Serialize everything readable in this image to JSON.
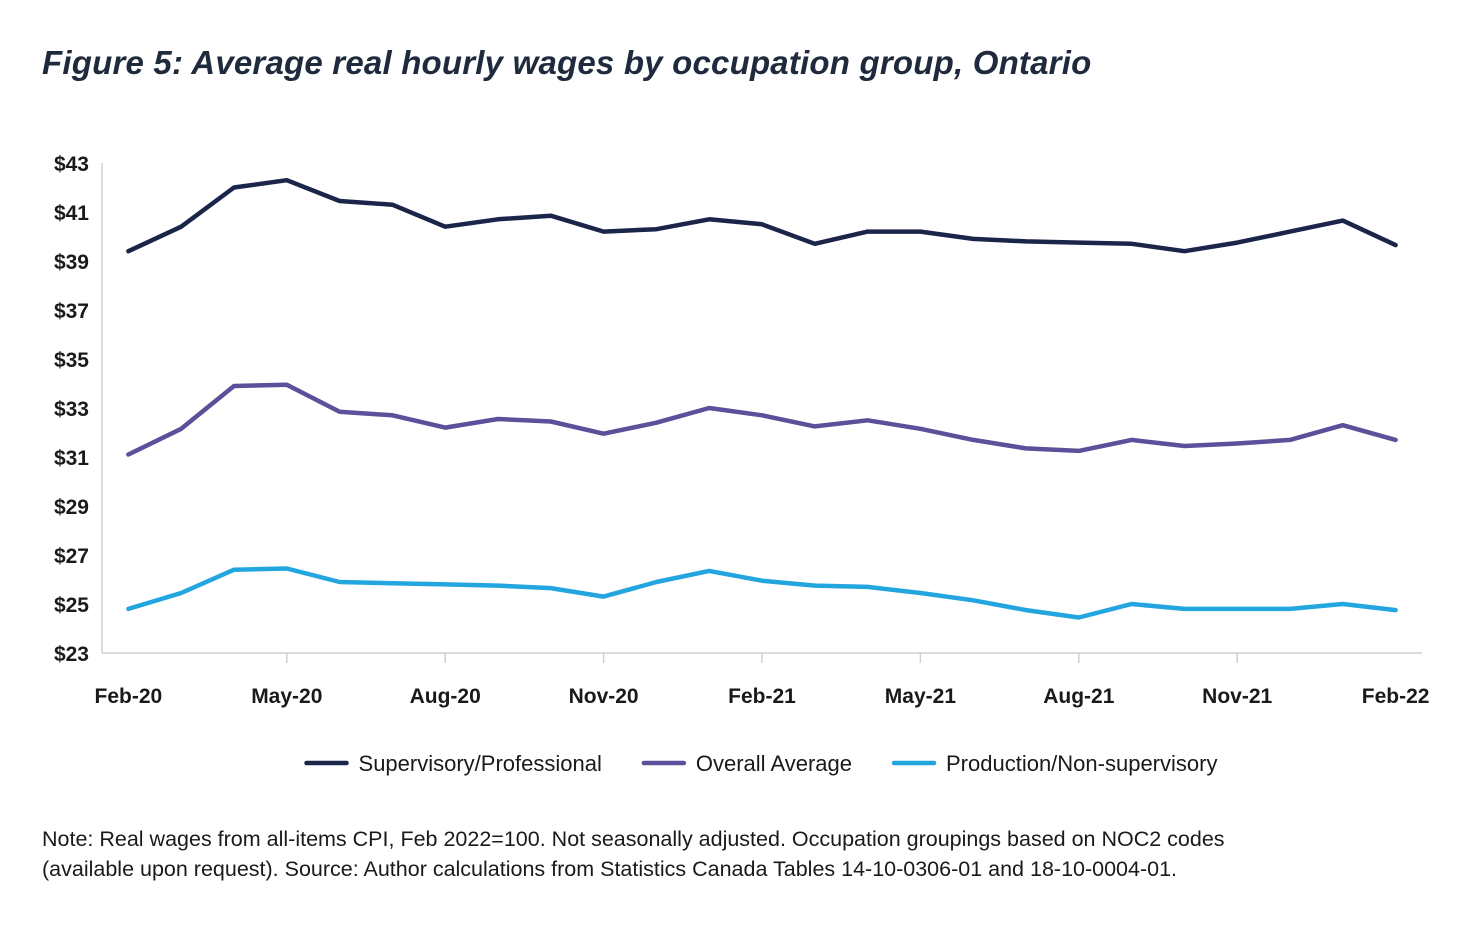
{
  "chart_data": {
    "type": "line",
    "title": "Figure 5: Average real hourly wages by occupation group, Ontario",
    "x": [
      "Feb-20",
      "Mar-20",
      "Apr-20",
      "May-20",
      "Jun-20",
      "Jul-20",
      "Aug-20",
      "Sep-20",
      "Oct-20",
      "Nov-20",
      "Dec-20",
      "Jan-21",
      "Feb-21",
      "Mar-21",
      "Apr-21",
      "May-21",
      "Jun-21",
      "Jul-21",
      "Aug-21",
      "Sep-21",
      "Oct-21",
      "Nov-21",
      "Dec-21",
      "Jan-22",
      "Feb-22"
    ],
    "x_tick_labels": [
      "Feb-20",
      "May-20",
      "Aug-20",
      "Nov-20",
      "Feb-21",
      "May-21",
      "Aug-21",
      "Nov-21",
      "Feb-22"
    ],
    "ylim": [
      23,
      43
    ],
    "y_tick_labels": [
      "$43",
      "$41",
      "$39",
      "$37",
      "$35",
      "$33",
      "$31",
      "$29",
      "$27",
      "$25",
      "$23"
    ],
    "grid": false,
    "legend_position": "bottom",
    "series": [
      {
        "name": "Supervisory/Professional",
        "color": "#1b2549",
        "values": [
          39.4,
          40.4,
          42.0,
          42.3,
          41.45,
          41.3,
          40.4,
          40.7,
          40.85,
          40.2,
          40.3,
          40.7,
          40.5,
          39.7,
          40.2,
          40.2,
          39.9,
          39.8,
          39.75,
          39.7,
          39.4,
          39.75,
          40.2,
          40.65,
          39.65
        ]
      },
      {
        "name": "Overall Average",
        "color": "#5a519a",
        "values": [
          31.1,
          32.15,
          33.9,
          33.95,
          32.85,
          32.7,
          32.2,
          32.55,
          32.45,
          31.95,
          32.4,
          33.0,
          32.7,
          32.25,
          32.5,
          32.15,
          31.7,
          31.35,
          31.25,
          31.7,
          31.45,
          31.55,
          31.7,
          32.3,
          31.7
        ]
      },
      {
        "name": "Production/Non-supervisory",
        "color": "#23a6e0",
        "values": [
          24.8,
          25.45,
          26.4,
          26.45,
          25.9,
          25.85,
          25.8,
          25.75,
          25.65,
          25.3,
          25.9,
          26.35,
          25.95,
          25.75,
          25.7,
          25.45,
          25.15,
          24.75,
          24.45,
          25.0,
          24.8,
          24.8,
          24.8,
          25.0,
          24.75
        ]
      }
    ]
  },
  "note": {
    "line1": "Note: Real wages from all-items CPI, Feb 2022=100. Not seasonally adjusted. Occupation groupings based on NOC2 codes",
    "line2": "(available upon request). Source: Author calculations from Statistics Canada Tables 14-10-0306-01 and 18-10-0004-01."
  }
}
